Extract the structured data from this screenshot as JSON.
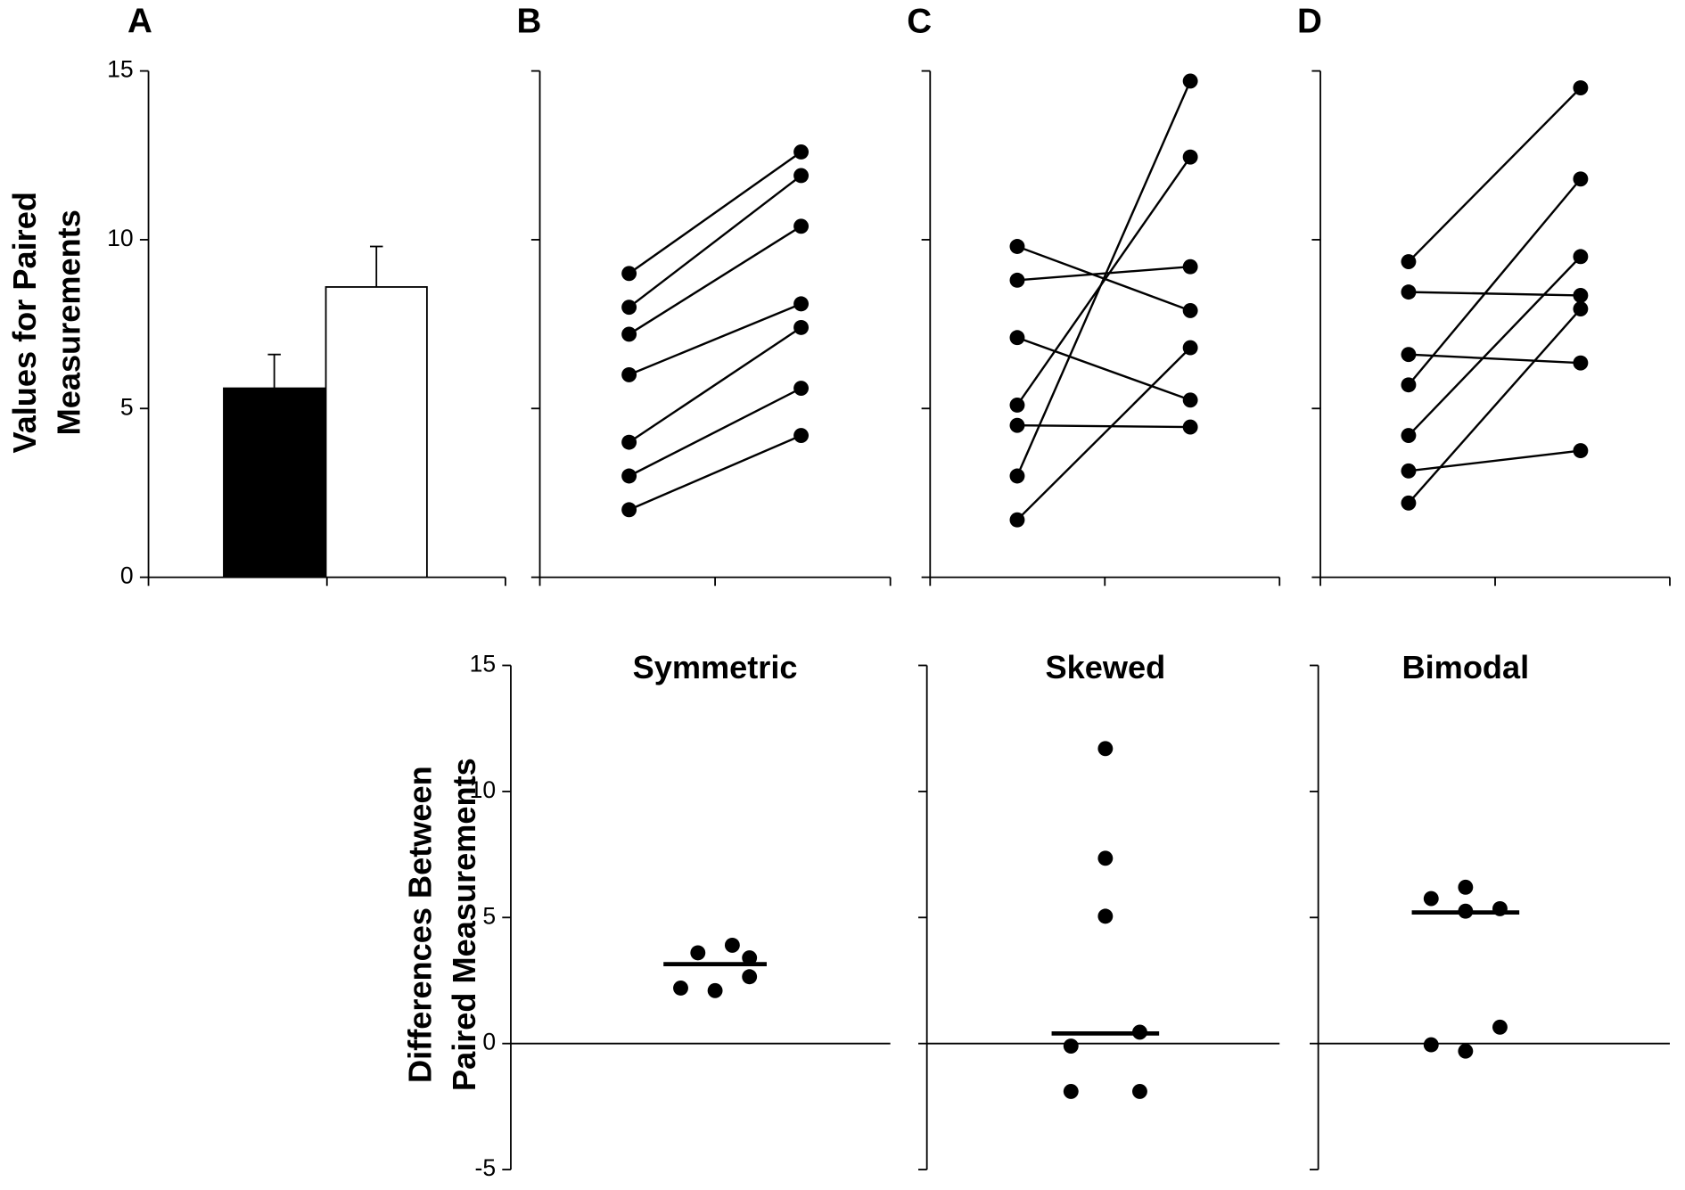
{
  "chart_data": [
    {
      "type": "bar",
      "panel_label": "A",
      "ylabel": [
        "Values for Paired",
        "Measurements"
      ],
      "categories": [
        null,
        null
      ],
      "values": [
        5.6,
        8.6
      ],
      "errors": [
        1.0,
        1.2
      ],
      "colors": [
        "#000000",
        "#ffffff"
      ],
      "ylim": [
        0,
        15
      ],
      "yticks": [
        0,
        5,
        10,
        15
      ],
      "ytick_labels": true
    },
    {
      "type": "line",
      "panel_label": "B",
      "categories": [
        null,
        null
      ],
      "color": "#000000",
      "series": [
        {
          "values": [
            9.0,
            12.6
          ]
        },
        {
          "values": [
            8.0,
            11.9
          ]
        },
        {
          "values": [
            7.2,
            10.4
          ]
        },
        {
          "values": [
            6.0,
            8.1
          ]
        },
        {
          "values": [
            4.0,
            7.4
          ]
        },
        {
          "values": [
            3.0,
            5.6
          ]
        },
        {
          "values": [
            2.0,
            4.2
          ]
        }
      ],
      "ylim": [
        0,
        15
      ],
      "yticks": [
        0,
        5,
        10,
        15
      ],
      "ytick_labels": false
    },
    {
      "type": "line",
      "panel_label": "C",
      "categories": [
        null,
        null
      ],
      "color": "#000000",
      "series": [
        {
          "values": [
            9.8,
            7.9
          ]
        },
        {
          "values": [
            8.8,
            9.2
          ]
        },
        {
          "values": [
            7.1,
            5.25
          ]
        },
        {
          "values": [
            5.1,
            12.45
          ]
        },
        {
          "values": [
            4.5,
            4.45
          ]
        },
        {
          "values": [
            3.0,
            14.7
          ]
        },
        {
          "values": [
            1.7,
            6.8
          ]
        }
      ],
      "ylim": [
        0,
        15
      ],
      "yticks": [
        0,
        5,
        10,
        15
      ],
      "ytick_labels": false
    },
    {
      "type": "line",
      "panel_label": "D",
      "categories": [
        null,
        null
      ],
      "color": "#000000",
      "series": [
        {
          "values": [
            9.35,
            14.5
          ]
        },
        {
          "values": [
            8.45,
            8.35
          ]
        },
        {
          "values": [
            6.6,
            6.35
          ]
        },
        {
          "values": [
            5.7,
            11.8
          ]
        },
        {
          "values": [
            4.2,
            9.5
          ]
        },
        {
          "values": [
            3.15,
            3.75
          ]
        },
        {
          "values": [
            2.2,
            7.95
          ]
        }
      ],
      "ylim": [
        0,
        15
      ],
      "yticks": [
        0,
        5,
        10,
        15
      ],
      "ytick_labels": false
    },
    {
      "type": "strip",
      "title": "Symmetric",
      "ylabel": [
        "Differences Between",
        "Paired Measurements"
      ],
      "color": "#000000",
      "values": [
        2.2,
        3.6,
        2.1,
        3.9,
        3.4,
        2.65
      ],
      "mean": 3.15,
      "ylim": [
        -5,
        15
      ],
      "yticks": [
        -5,
        0,
        5,
        10,
        15
      ],
      "ytick_labels": true
    },
    {
      "type": "strip",
      "title": "Skewed",
      "color": "#000000",
      "values": [
        11.7,
        7.35,
        5.05,
        0.45,
        -0.1,
        -1.9,
        -1.9
      ],
      "mean": 0.4,
      "ylim": [
        -5,
        15
      ],
      "yticks": [
        -5,
        0,
        5,
        10,
        15
      ],
      "ytick_labels": false
    },
    {
      "type": "strip",
      "title": "Bimodal",
      "color": "#000000",
      "values": [
        5.75,
        6.2,
        5.25,
        5.35,
        -0.05,
        -0.3,
        0.65
      ],
      "mean": 5.2,
      "ylim": [
        -5,
        15
      ],
      "yticks": [
        -5,
        0,
        5,
        10,
        15
      ],
      "ytick_labels": false
    }
  ]
}
